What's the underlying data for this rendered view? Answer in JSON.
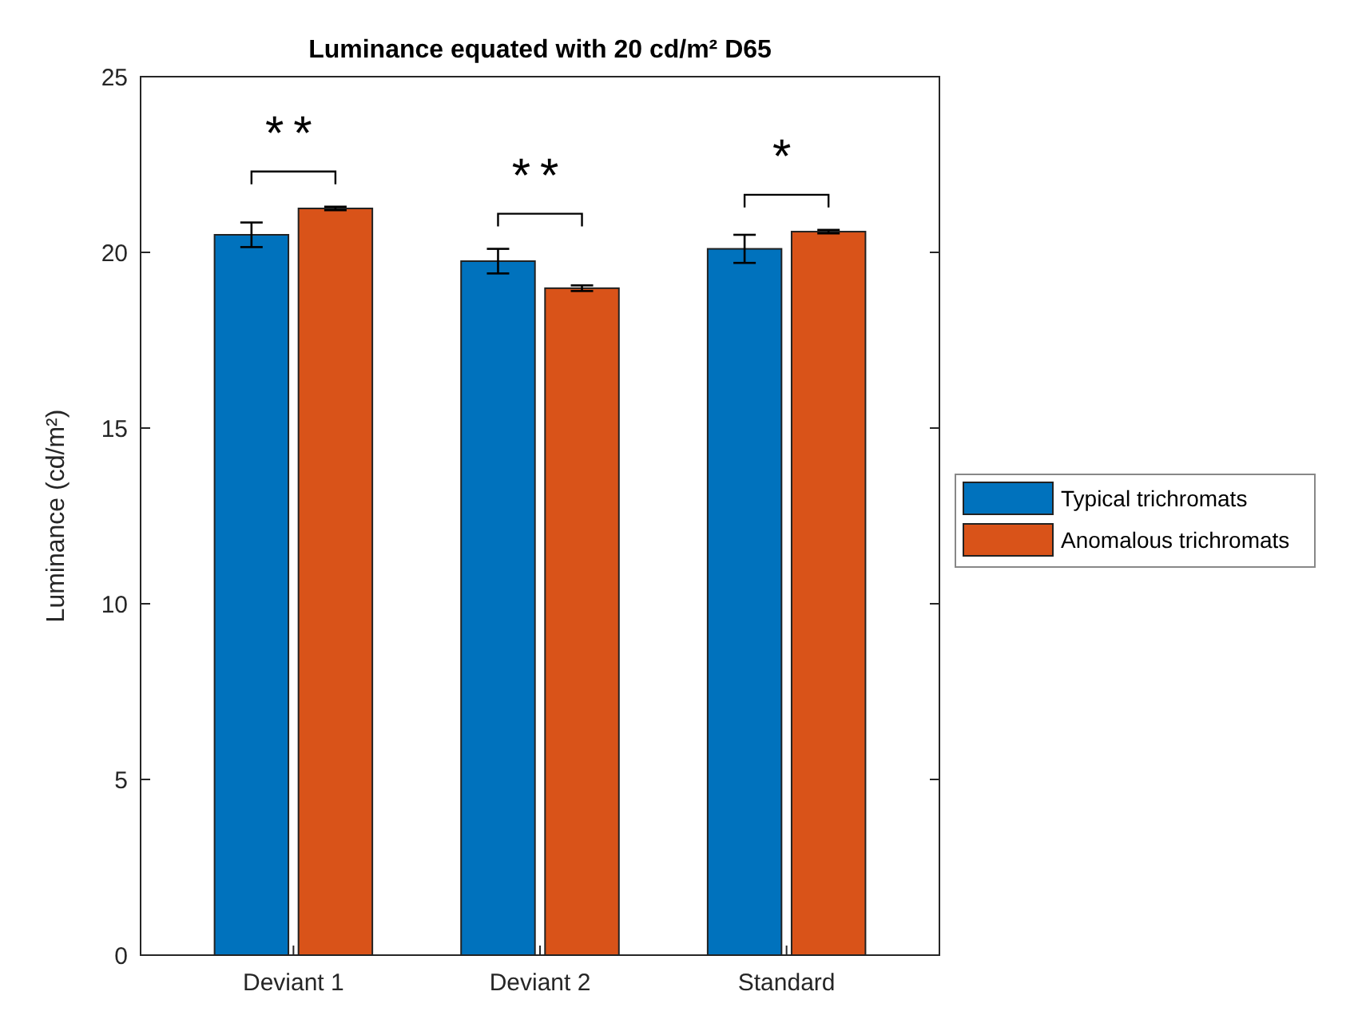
{
  "chart_data": {
    "type": "bar",
    "title": "Luminance equated with 20 cd/m² D65",
    "ylabel": "Luminance (cd/m²)",
    "categories": [
      "Deviant 1",
      "Deviant 2",
      "Standard"
    ],
    "series": [
      {
        "name": "Typical trichromats",
        "color": "#0072bd",
        "values": [
          20.5,
          19.75,
          20.1
        ],
        "errors": [
          0.35,
          0.35,
          0.4
        ]
      },
      {
        "name": "Anomalous trichromats",
        "color": "#d95319",
        "values": [
          21.25,
          18.98,
          20.59
        ],
        "errors": [
          0.05,
          0.08,
          0.05
        ]
      }
    ],
    "ylim": [
      0,
      25
    ],
    "yticks": [
      0,
      5,
      10,
      15,
      20,
      25
    ],
    "grid": false,
    "legend": "right",
    "annotations": [
      "**",
      "**",
      "*"
    ]
  }
}
